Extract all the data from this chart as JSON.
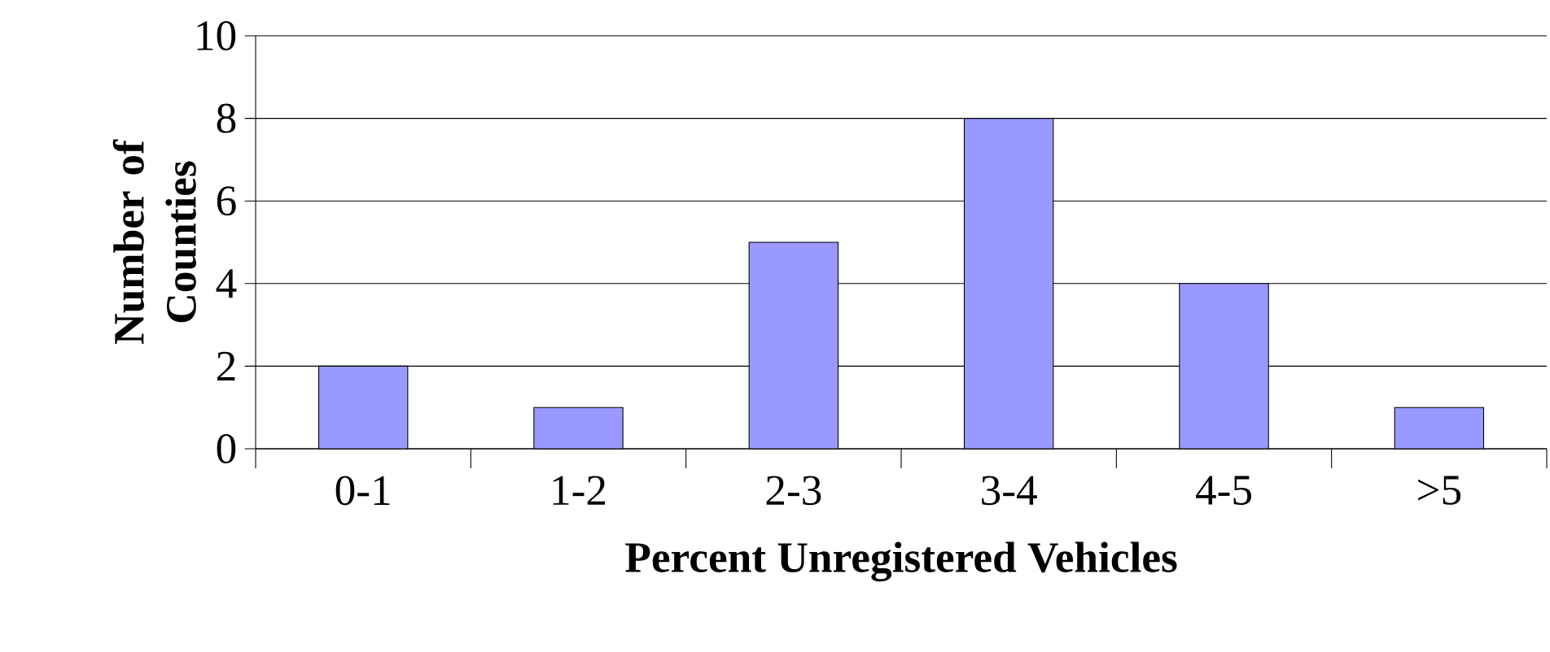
{
  "chart_data": {
    "type": "bar",
    "xlabel": "Percent Unregistered Vehicles",
    "ylabel": "Number of Counties",
    "categories": [
      "0-1",
      "1-2",
      "2-3",
      "3-4",
      "4-5",
      ">5"
    ],
    "values": [
      2,
      1,
      5,
      8,
      4,
      1
    ],
    "color": "#9999ff",
    "ylim": [
      0,
      10
    ],
    "yticks": [
      0,
      2,
      4,
      6,
      8,
      10
    ],
    "grid": "y"
  }
}
